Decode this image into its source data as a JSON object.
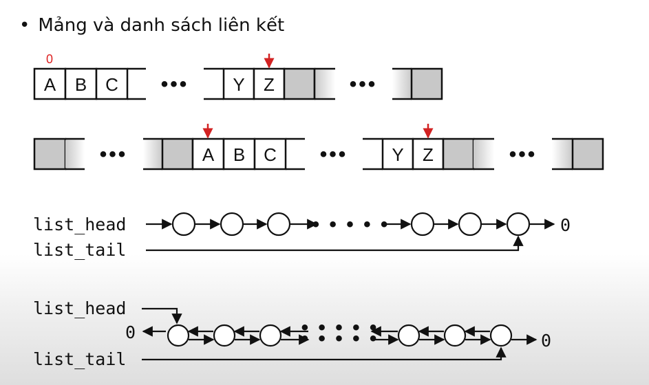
{
  "title": "Mảng và danh sách liên kết",
  "array1": {
    "index_label": "0",
    "cells_first": [
      "A",
      "B",
      "C"
    ],
    "cells_second": [
      "Y",
      "Z"
    ]
  },
  "array2": {
    "cells_first": [
      "A",
      "B",
      "C"
    ],
    "cells_second": [
      "Y",
      "Z"
    ]
  },
  "ellipsis": "•••",
  "ellipsis_list": "• • • • •",
  "singly_list": {
    "head_label": "list_head",
    "tail_label": "list_tail",
    "null_label": "0"
  },
  "doubly_list": {
    "head_label": "list_head",
    "tail_label": "list_tail",
    "null_left": "0",
    "null_right": "0"
  },
  "colors": {
    "marker": "#d22222",
    "filled_cell": "#c8c8c8",
    "line": "#111111"
  }
}
